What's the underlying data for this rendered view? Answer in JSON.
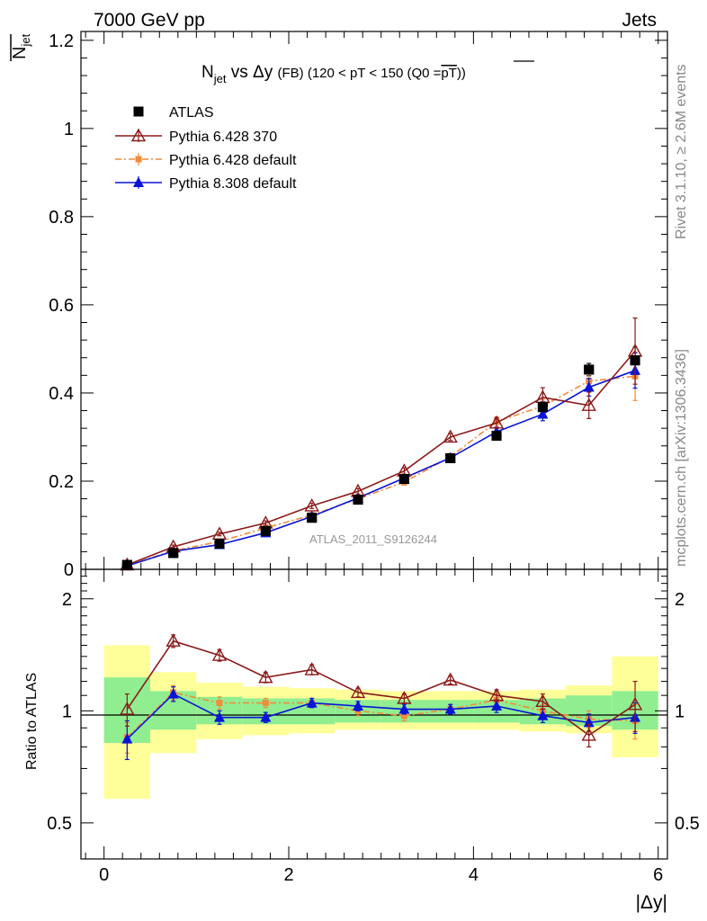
{
  "header": {
    "left": "7000 GeV pp",
    "right": "Jets"
  },
  "side": {
    "rivet": "Rivet 3.1.10, ≥ 2.6M events",
    "mcplots": "mcplots.cern.ch [arXiv:1306.3436]"
  },
  "colors": {
    "atlas": "#000000",
    "py6_370": "#8b1a1a",
    "py6_def": "#f28c3a",
    "py8_def": "#0a14d6",
    "band_inner": "#90ee90",
    "band_outer": "#ffff99"
  },
  "chart_data": [
    {
      "type": "line",
      "title_parts": {
        "n": "N",
        "sub": "jet",
        "rest": " vs Δy ",
        "fb": "(FB)",
        "cond": " (120 < pT < 150 (Q0 =",
        "bar": "pT",
        "close": "))"
      },
      "ylabel": {
        "n": "N",
        "sub": "jet"
      },
      "xlabel": "",
      "watermark": "ATLAS_2011_S9126244",
      "xlim": [
        -0.25,
        6.1
      ],
      "ylim": [
        0,
        1.22
      ],
      "yticks": [
        0,
        0.2,
        0.4,
        0.6,
        0.8,
        1,
        1.2
      ],
      "ytick_labels": [
        "0",
        "0.2",
        "0.4",
        "0.6",
        "0.8",
        "1",
        "1.2"
      ],
      "legend": [
        "ATLAS",
        "Pythia 6.428 370",
        "Pythia 6.428 default",
        "Pythia 8.308 default"
      ],
      "legend_position": "top-left",
      "x": [
        0.25,
        0.75,
        1.25,
        1.75,
        2.25,
        2.75,
        3.25,
        3.75,
        4.25,
        4.75,
        5.25,
        5.75
      ],
      "series": [
        {
          "name": "ATLAS",
          "values": [
            0.01,
            0.037,
            0.058,
            0.087,
            0.117,
            0.158,
            0.205,
            0.252,
            0.303,
            0.368,
            0.453,
            0.474
          ],
          "errors": [
            0.002,
            0.003,
            0.004,
            0.005,
            0.006,
            0.006,
            0.007,
            0.008,
            0.01,
            0.012,
            0.014,
            0.03
          ]
        },
        {
          "name": "Pythia 6.428 370",
          "values": [
            0.01,
            0.051,
            0.08,
            0.105,
            0.144,
            0.177,
            0.223,
            0.3,
            0.332,
            0.39,
            0.372,
            0.495
          ],
          "errors": [
            0.002,
            0.004,
            0.004,
            0.005,
            0.006,
            0.006,
            0.007,
            0.008,
            0.012,
            0.022,
            0.03,
            0.075
          ]
        },
        {
          "name": "Pythia 6.428 default",
          "values": [
            0.009,
            0.042,
            0.063,
            0.094,
            0.123,
            0.16,
            0.198,
            0.255,
            0.335,
            0.37,
            0.427,
            0.438
          ],
          "errors": [
            0.002,
            0.003,
            0.004,
            0.005,
            0.005,
            0.006,
            0.007,
            0.008,
            0.011,
            0.015,
            0.025,
            0.055
          ]
        },
        {
          "name": "Pythia 8.308 default",
          "values": [
            0.008,
            0.041,
            0.056,
            0.083,
            0.12,
            0.162,
            0.207,
            0.253,
            0.312,
            0.352,
            0.413,
            0.451
          ],
          "errors": [
            0.002,
            0.003,
            0.003,
            0.004,
            0.005,
            0.005,
            0.006,
            0.007,
            0.01,
            0.015,
            0.02,
            0.04
          ]
        }
      ]
    },
    {
      "type": "line",
      "ylabel": "Ratio to ATLAS",
      "xlabel": "|Δy|",
      "xlim": [
        -0.25,
        6.1
      ],
      "ylim": [
        0.4,
        2.4
      ],
      "log_y": true,
      "yticks": [
        0.5,
        1,
        2
      ],
      "ytick_labels": [
        "0.5",
        "1",
        "2"
      ],
      "xticks": [
        0,
        2,
        4,
        6
      ],
      "xtick_labels": [
        "0",
        "2",
        "4",
        "6"
      ],
      "x_edges": [
        0,
        0.5,
        1,
        1.5,
        2,
        2.5,
        3,
        3.5,
        4,
        4.5,
        5,
        5.5,
        6
      ],
      "band_inner": [
        [
          0.82,
          1.23
        ],
        [
          0.89,
          1.13
        ],
        [
          0.92,
          1.09
        ],
        [
          0.92,
          1.08
        ],
        [
          0.92,
          1.08
        ],
        [
          0.93,
          1.07
        ],
        [
          0.93,
          1.07
        ],
        [
          0.93,
          1.07
        ],
        [
          0.93,
          1.07
        ],
        [
          0.92,
          1.08
        ],
        [
          0.91,
          1.1
        ],
        [
          0.89,
          1.13
        ]
      ],
      "band_outer": [
        [
          0.58,
          1.5
        ],
        [
          0.77,
          1.27
        ],
        [
          0.84,
          1.19
        ],
        [
          0.86,
          1.16
        ],
        [
          0.87,
          1.15
        ],
        [
          0.89,
          1.14
        ],
        [
          0.89,
          1.13
        ],
        [
          0.89,
          1.13
        ],
        [
          0.89,
          1.13
        ],
        [
          0.88,
          1.14
        ],
        [
          0.87,
          1.17
        ],
        [
          0.75,
          1.4
        ]
      ],
      "x": [
        0.25,
        0.75,
        1.25,
        1.75,
        2.25,
        2.75,
        3.25,
        3.75,
        4.25,
        4.75,
        5.25,
        5.75
      ],
      "series": [
        {
          "name": "Pythia 6.428 370",
          "values": [
            1.01,
            1.54,
            1.41,
            1.23,
            1.29,
            1.12,
            1.08,
            1.21,
            1.1,
            1.06,
            0.86,
            1.04
          ],
          "errors": [
            0.1,
            0.06,
            0.05,
            0.04,
            0.04,
            0.03,
            0.03,
            0.03,
            0.04,
            0.05,
            0.06,
            0.16
          ]
        },
        {
          "name": "Pythia 6.428 default",
          "values": [
            0.85,
            1.12,
            1.05,
            1.05,
            1.05,
            1.0,
            0.97,
            1.01,
            1.07,
            1.0,
            0.95,
            0.94
          ],
          "errors": [
            0.08,
            0.05,
            0.04,
            0.03,
            0.03,
            0.03,
            0.03,
            0.03,
            0.04,
            0.04,
            0.05,
            0.1
          ]
        },
        {
          "name": "Pythia 8.308 default",
          "values": [
            0.84,
            1.11,
            0.96,
            0.96,
            1.05,
            1.03,
            1.01,
            1.01,
            1.03,
            0.97,
            0.93,
            0.96
          ],
          "errors": [
            0.1,
            0.05,
            0.04,
            0.03,
            0.03,
            0.03,
            0.03,
            0.03,
            0.04,
            0.04,
            0.05,
            0.09
          ]
        }
      ]
    }
  ]
}
